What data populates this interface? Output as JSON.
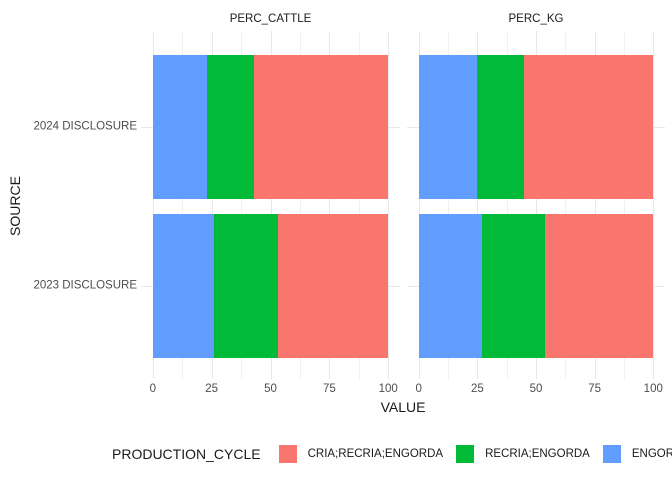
{
  "chart_data": {
    "type": "bar",
    "orientation": "horizontal",
    "stacked": true,
    "title": "",
    "xlabel": "VALUE",
    "ylabel": "SOURCE",
    "categories": [
      "2024 DISCLOSURE",
      "2023 DISCLOSURE"
    ],
    "xlim": [
      -5,
      105
    ],
    "x_ticks": [
      0,
      25,
      50,
      75,
      100
    ],
    "x_minor_ticks": [
      12.5,
      37.5,
      62.5,
      87.5
    ],
    "grid": true,
    "facets": [
      {
        "label": "PERC_CATTLE",
        "series": [
          {
            "name": "ENGORDA",
            "color": "#619CFF",
            "values": [
              23,
              26
            ]
          },
          {
            "name": "RECRIA;ENGORDA",
            "color": "#00BA38",
            "values": [
              20,
              27
            ]
          },
          {
            "name": "CRIA;RECRIA;ENGORDA",
            "color": "#F8766D",
            "values": [
              57,
              47
            ]
          }
        ]
      },
      {
        "label": "PERC_KG",
        "series": [
          {
            "name": "ENGORDA",
            "color": "#619CFF",
            "values": [
              25,
              27
            ]
          },
          {
            "name": "RECRIA;ENGORDA",
            "color": "#00BA38",
            "values": [
              20,
              27
            ]
          },
          {
            "name": "CRIA;RECRIA;ENGORDA",
            "color": "#F8766D",
            "values": [
              55,
              46
            ]
          }
        ]
      }
    ],
    "legend": {
      "title": "PRODUCTION_CYCLE",
      "position": "bottom",
      "entries": [
        {
          "label": "CRIA;RECRIA;ENGORDA",
          "color": "#F8766D"
        },
        {
          "label": "RECRIA;ENGORDA",
          "color": "#00BA38"
        },
        {
          "label": "ENGORDA",
          "color": "#619CFF"
        }
      ]
    },
    "theme": {
      "background": "#FFFFFF",
      "grid_major_color": "#E8E8E8",
      "grid_minor_color": "#F0F0F0",
      "axis_text_color": "#4D4D4D",
      "title_text_color": "#1A1A1A"
    }
  }
}
